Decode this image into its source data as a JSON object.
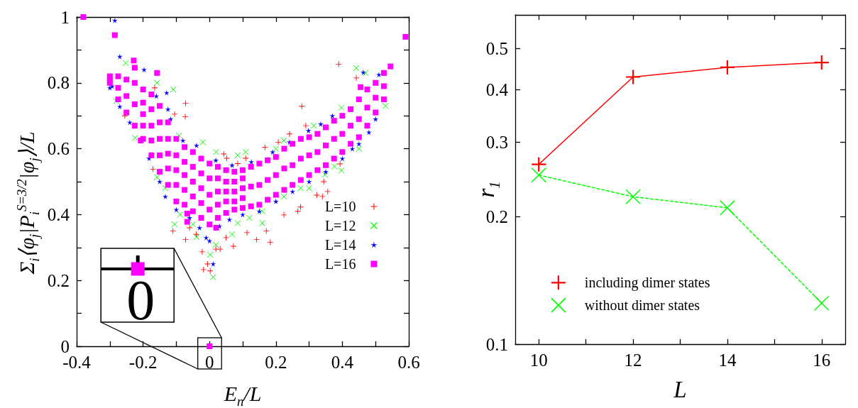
{
  "chart_data": [
    {
      "type": "scatter",
      "xlabel": "E$_{n}$/L",
      "ylabel": "Σ$_{i}$⟨φ$_{j}$|P$_{i}$$^{S=3/2}$|φ$_{j}$⟩/L",
      "xlim": [
        -0.4,
        0.6
      ],
      "xticks": [
        -0.4,
        {
          "value": -0.3,
          "label": null
        },
        -0.2,
        {
          "value": -0.1,
          "label": null
        },
        0,
        {
          "value": 0.1,
          "label": null
        },
        0.2,
        {
          "value": 0.3,
          "label": null
        },
        0.4,
        {
          "value": 0.5,
          "label": null
        },
        0.6
      ],
      "ylim": [
        0,
        1
      ],
      "yticks": [
        0,
        {
          "value": 0.1,
          "label": null
        },
        0.2,
        {
          "value": 0.3,
          "label": null
        },
        0.4,
        {
          "value": 0.5,
          "label": null
        },
        0.6,
        {
          "value": 0.7,
          "label": null
        },
        0.8,
        {
          "value": 0.9,
          "label": null
        },
        1
      ],
      "legend": "bottom right",
      "annotations": [
        {
          "text": "0",
          "x": 0,
          "y": 0
        }
      ],
      "series": [
        {
          "name": "L=10",
          "color": "#ff0000",
          "marker": "cross",
          "x": [
            0.389,
            0.278,
            -0.072,
            -0.073,
            0.043,
            0.167,
            0.241,
            0.442,
            -0.255,
            -0.165,
            -0.105,
            -0.17,
            0.109,
            0.207,
            0.29,
            0.052,
            0.085,
            0.274,
            0.34,
            -0.018,
            0.002,
            0.183,
            -0.022,
            -0.072,
            -0.11,
            -0.04,
            -0.006,
            0.019,
            0.032,
            0.072,
            0.113,
            0.142,
            0.171,
            0.224,
            0.266,
            0.323,
            0.356,
            0.344,
            0.393,
            -0.06,
            0.05
          ],
          "values": [
            0.857,
            0.729,
            0.738,
            0.697,
            0.584,
            0.604,
            0.645,
            0.815,
            0.7,
            0.785,
            0.705,
            0.538,
            0.571,
            0.62,
            0.67,
            0.571,
            0.555,
            0.423,
            0.455,
            0.233,
            0.229,
            0.316,
            0.287,
            0.324,
            0.35,
            0.34,
            0.25,
            0.295,
            0.295,
            0.304,
            0.345,
            0.324,
            0.35,
            0.399,
            0.41,
            0.459,
            0.47,
            0.5,
            0.554,
            0.36,
            0.33
          ]
        },
        {
          "name": "L=12",
          "color": "#00ff00",
          "marker": "x",
          "x": [
            -0.252,
            -0.281,
            -0.109,
            -0.158,
            -0.224,
            -0.092,
            -0.02,
            0.02,
            0.085,
            0.109,
            0.2,
            0.224,
            0.314,
            0.397,
            0.442,
            0.47,
            0.53,
            0.376,
            0.397,
            0.348,
            0.274,
            0.224,
            0.159,
            0.159,
            0.085,
            0.068,
            0.019,
            0.002,
            0.011,
            -0.039,
            -0.105,
            -0.088,
            -0.133,
            -0.158,
            0.45,
            0.3,
            0.12,
            -0.05
          ],
          "values": [
            0.86,
            0.745,
            0.78,
            0.8,
            0.633,
            0.64,
            0.62,
            0.59,
            0.58,
            0.59,
            0.6,
            0.625,
            0.67,
            0.725,
            0.845,
            0.83,
            0.73,
            0.546,
            0.534,
            0.521,
            0.48,
            0.455,
            0.41,
            0.374,
            0.374,
            0.34,
            0.308,
            0.278,
            0.21,
            0.332,
            0.37,
            0.4,
            0.48,
            0.513,
            0.6,
            0.48,
            0.39,
            0.37
          ]
        },
        {
          "name": "L=14",
          "color": "#0000ff",
          "marker": "star",
          "x": [
            -0.285,
            -0.27,
            -0.293,
            -0.3,
            -0.197,
            -0.129,
            -0.125,
            -0.117,
            -0.24,
            -0.27,
            -0.182,
            -0.133,
            -0.15,
            -0.1,
            -0.06,
            -0.03,
            -0.01,
            0,
            0.011,
            0.03,
            0.06,
            0.1,
            0.15,
            0.2,
            0.25,
            0.3,
            0.35,
            0.4,
            0.45,
            0.5,
            -0.039,
            0.019,
            0.068,
            0.126,
            0.19,
            0.241,
            0.298,
            0.335,
            0.37,
            0.463,
            0.51,
            0.43,
            0.48,
            -0.08,
            -0.16
          ],
          "values": [
            0.99,
            0.88,
            0.79,
            0.785,
            0.84,
            0.77,
            0.72,
            0.69,
            0.68,
            0.728,
            0.571,
            0.455,
            0.5,
            0.415,
            0.39,
            0.36,
            0.33,
            0.32,
            0.25,
            0.365,
            0.385,
            0.4,
            0.41,
            0.44,
            0.47,
            0.5,
            0.53,
            0.57,
            0.615,
            0.69,
            0.61,
            0.565,
            0.55,
            0.56,
            0.59,
            0.62,
            0.655,
            0.675,
            0.7,
            0.832,
            0.825,
            0.6,
            0.65,
            0.625,
            0.76
          ]
        },
        {
          "name": "L=16",
          "color": "#ff00ff",
          "marker": "square",
          "x": [
            -0.3,
            -0.275,
            -0.25,
            -0.225,
            -0.2,
            -0.175,
            -0.15,
            -0.125,
            -0.1,
            -0.075,
            -0.05,
            -0.025,
            0,
            0.025,
            0.05,
            0.075,
            0.1,
            0.125,
            0.15,
            0.175,
            0.2,
            0.225,
            0.25,
            0.275,
            0.3,
            0.325,
            0.35,
            0.375,
            0.4,
            0.425,
            0.45,
            0.475,
            0.5,
            0.525,
            -0.3,
            -0.275,
            -0.25,
            -0.225,
            -0.2,
            -0.175,
            -0.15,
            -0.125,
            -0.1,
            -0.075,
            -0.05,
            -0.025,
            0,
            0.025,
            0.05,
            0.075,
            0.1,
            0.125,
            0.15,
            0.175,
            0.2,
            0.225,
            0.25,
            0.275,
            0.3,
            0.325,
            0.35,
            0.375,
            0.4,
            0.425,
            0.45,
            0.475,
            0.5,
            0.525,
            -0.3,
            -0.275,
            -0.25,
            -0.225,
            -0.2,
            -0.175,
            -0.15,
            -0.125,
            -0.1,
            -0.075,
            -0.05,
            -0.025,
            0,
            0.025,
            0.05,
            0.075,
            0.1,
            0.125,
            0.15,
            0.175,
            0.2,
            0.225,
            0.25,
            0.275,
            0.3,
            0.325,
            0.35,
            0.375,
            0.4,
            0.425,
            0.45,
            0.475,
            0.5,
            0.525,
            -0.2,
            -0.175,
            -0.15,
            -0.125,
            -0.1,
            -0.075,
            -0.05,
            -0.025,
            0,
            0.025,
            0.05,
            0.075,
            0.1,
            -0.2,
            -0.175,
            -0.15,
            -0.125,
            -0.1,
            -0.075,
            -0.05,
            -0.025,
            0,
            0.025,
            0.05,
            0.075,
            0.1,
            -0.38,
            -0.285,
            0.59,
            0,
            -0.228,
            -0.225,
            -0.158,
            -0.207,
            -0.067,
            -0.067,
            0.02,
            0.455,
            0.545
          ],
          "values": [
            0.82,
            0.82,
            0.81,
            0.8,
            0.78,
            0.765,
            0.73,
            0.68,
            0.63,
            0.605,
            0.59,
            0.57,
            0.555,
            0.545,
            0.535,
            0.53,
            0.535,
            0.545,
            0.555,
            0.565,
            0.575,
            0.6,
            0.615,
            0.63,
            0.635,
            0.645,
            0.665,
            0.685,
            0.7,
            0.72,
            0.75,
            0.78,
            0.8,
            0.83,
            0.81,
            0.785,
            0.76,
            0.735,
            0.705,
            0.67,
            0.63,
            0.585,
            0.535,
            0.52,
            0.5,
            0.48,
            0.46,
            0.47,
            0.47,
            0.47,
            0.48,
            0.485,
            0.49,
            0.505,
            0.52,
            0.54,
            0.55,
            0.57,
            0.58,
            0.59,
            0.61,
            0.63,
            0.645,
            0.67,
            0.69,
            0.725,
            0.755,
            0.79,
            0.8,
            0.75,
            0.71,
            0.67,
            0.63,
            0.58,
            0.53,
            0.49,
            0.44,
            0.43,
            0.41,
            0.39,
            0.37,
            0.39,
            0.405,
            0.415,
            0.42,
            0.425,
            0.43,
            0.445,
            0.46,
            0.475,
            0.49,
            0.505,
            0.52,
            0.535,
            0.55,
            0.57,
            0.59,
            0.615,
            0.635,
            0.67,
            0.71,
            0.75,
            0.74,
            0.72,
            0.68,
            0.63,
            0.58,
            0.56,
            0.545,
            0.525,
            0.51,
            0.51,
            0.5,
            0.5,
            0.51,
            0.67,
            0.625,
            0.58,
            0.54,
            0.49,
            0.475,
            0.455,
            0.435,
            0.415,
            0.43,
            0.44,
            0.44,
            0.45,
            1,
            0.945,
            0.94,
            0,
            0.868,
            0.846,
            0.83,
            0.625,
            0.403,
            0.378,
            0.36,
            0.787,
            0.85
          ]
        }
      ]
    },
    {
      "type": "line",
      "xlabel": "L",
      "ylabel": "r$_{1}$",
      "x": [
        10,
        12,
        14,
        16
      ],
      "xlim": [
        9.5,
        16.5
      ],
      "xticks": [
        10,
        {
          "value": 11,
          "label": null
        },
        12,
        {
          "value": 13,
          "label": null
        },
        14,
        {
          "value": 15,
          "label": null
        },
        16
      ],
      "ylim": [
        0.1,
        0.6
      ],
      "yticks": [
        0.1,
        0.2,
        0.3,
        0.4,
        0.5
      ],
      "log": "y",
      "legend": "bottom left",
      "series": [
        {
          "name": "including dimer states",
          "color": "#ff0000",
          "marker": "cross",
          "line_style": "solid",
          "values": [
            0.266,
            0.428,
            0.451,
            0.463
          ]
        },
        {
          "name": "without dimer states",
          "color": "#00ff00",
          "marker": "x",
          "line_style": "dashed",
          "values": [
            0.251,
            0.223,
            0.21,
            0.125
          ]
        }
      ]
    }
  ]
}
